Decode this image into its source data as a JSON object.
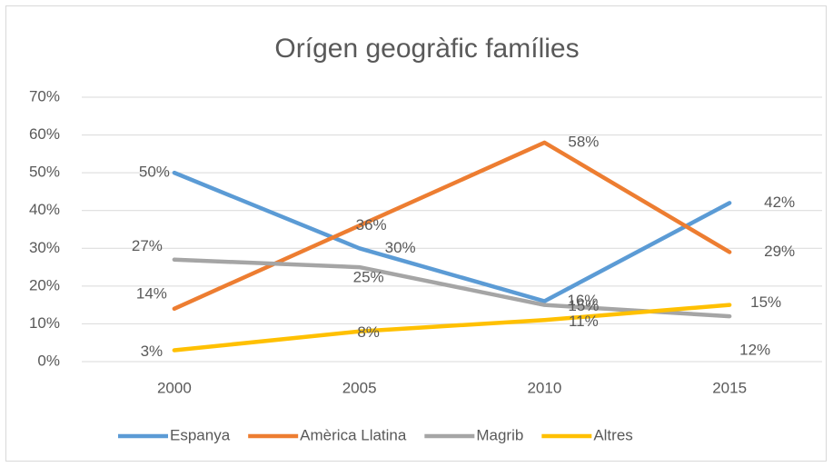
{
  "chart_data": {
    "type": "line",
    "title": "Orígen geogràfic famílies",
    "categories": [
      "2000",
      "2005",
      "2010",
      "2015"
    ],
    "series": [
      {
        "name": "Espanya",
        "color": "#5b9bd5",
        "values": [
          50,
          30,
          16,
          42
        ],
        "value_labels": [
          "50%",
          "30%",
          "16%",
          "42%"
        ]
      },
      {
        "name": "Amèrica Llatina",
        "color": "#ed7d31",
        "values": [
          14,
          36,
          58,
          29
        ],
        "value_labels": [
          "14%",
          "36%",
          "58%",
          "29%"
        ]
      },
      {
        "name": "Magrib",
        "color": "#a5a5a5",
        "values": [
          27,
          25,
          15,
          12
        ],
        "value_labels": [
          "27%",
          "25%",
          "15%",
          "12%"
        ]
      },
      {
        "name": "Altres",
        "color": "#ffc000",
        "values": [
          3,
          8,
          11,
          15
        ],
        "value_labels": [
          "3%",
          "8%",
          "11%",
          "15%"
        ]
      }
    ],
    "ylim": [
      0,
      70
    ],
    "yticks": [
      {
        "value": 0,
        "label": "0%"
      },
      {
        "value": 10,
        "label": "10%"
      },
      {
        "value": 20,
        "label": "20%"
      },
      {
        "value": 30,
        "label": "30%"
      },
      {
        "value": 40,
        "label": "40%"
      },
      {
        "value": 50,
        "label": "50%"
      },
      {
        "value": 60,
        "label": "60%"
      },
      {
        "value": 70,
        "label": "70%"
      }
    ],
    "grid": true,
    "legend": "bottom"
  }
}
